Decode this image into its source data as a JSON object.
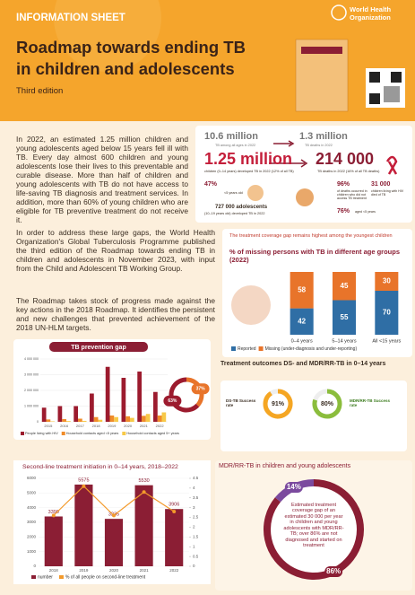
{
  "header": {
    "label": "INFORMATION SHEET",
    "title": [
      "Roadmap towards ending TB",
      "in children and adolescents"
    ],
    "edition": "Third edition",
    "org": [
      "World Health",
      "Organization"
    ]
  },
  "paragraphs": [
    "In 2022, an estimated 1.25 million children and young adolescents aged below 15 years fell ill with TB. Every day almost 600 children and young adolescents lose their lives to this preventable and curable disease. More than half of children and young adolescents with TB do not have access to life-saving TB diagnosis and treatment services. In addition, more than 60% of young children who are eligible for TB preventive treatment do not receive it.",
    "In order to address these large gaps, the World Health Organization's Global Tuberculosis Programme published the third edition of the Roadmap towards ending TB in children and adolescents in November 2023, with input from the Child and Adolescent TB Working Group.",
    "The Roadmap takes stock of progress made against the key actions in the 2018 Roadmap. It identifies the persistent and new challenges that prevented achievement of the 2018 UN-HLM targets."
  ],
  "stats": {
    "all_ages": {
      "value": "10.6 million",
      "label": "TB among all ages in 2022"
    },
    "all_deaths": {
      "value": "1.3 million",
      "label": "TB deaths in 2022"
    },
    "children": {
      "value": "1.25 million",
      "label": "children (0–14 years) developed TB in 2022 (12% of all TB)"
    },
    "child_deaths": {
      "value": "214 000",
      "label": "TB deaths in 2022 (16% of all TB deaths)"
    },
    "under5": {
      "value": "47%",
      "label": "<5 years old"
    },
    "adolescents": {
      "value": "727 000 adolescents",
      "label": "(10–19 years old) developed TB in 2022"
    },
    "untreated": {
      "value": "96%",
      "label": "of deaths occurred in children who did not access TB treatment"
    },
    "deaths_under5": {
      "value": "76%",
      "label": "aged <5 years"
    },
    "hiv": {
      "value": "31 000",
      "label": "children living with HIV died of TB"
    }
  },
  "chart_data": [
    {
      "type": "stacked-bar",
      "title": "The treatment coverage gap remains highest among the youngest children",
      "subtitle": "% of missing persons with TB in different age groups (2022)",
      "categories": [
        "0–4 years",
        "5–14 years",
        "All <15 years"
      ],
      "series": [
        {
          "name": "Reported",
          "color": "#2f6ea5",
          "values": [
            42,
            55,
            70
          ]
        },
        {
          "name": "Missing (under-diagnosis and under-reporting)",
          "color": "#e8742a",
          "values": [
            58,
            45,
            30
          ]
        }
      ]
    },
    {
      "type": "grouped-bar",
      "title": "TB prevention gap",
      "categories": [
        "2015",
        "2016",
        "2017",
        "2018",
        "2019",
        "2020",
        "2021",
        "2022"
      ],
      "ylim": [
        0,
        4000000
      ],
      "yticks": [
        0,
        {
          "value": 1000000,
          "label": "1 000 000"
        },
        {
          "value": 2000000,
          "label": "2 000 000"
        },
        {
          "value": 3000000,
          "label": "3 000 000"
        },
        {
          "value": 4000000,
          "label": "4 000 000"
        }
      ],
      "series": [
        {
          "name": "People living with HIV",
          "color": "#9c1b2e",
          "values": [
            900000,
            1000000,
            1000000,
            1800000,
            3500000,
            2800000,
            3200000,
            1900000
          ]
        },
        {
          "name": "Household contacts aged <5 years",
          "color": "#f08c2a",
          "values": [
            150000,
            170000,
            200000,
            300000,
            400000,
            350000,
            380000,
            400000
          ]
        },
        {
          "name": "Household contacts aged 5+ years",
          "color": "#f7c948",
          "values": [
            30000,
            50000,
            60000,
            130000,
            300000,
            250000,
            500000,
            600000
          ]
        }
      ]
    },
    {
      "type": "pie",
      "values": [
        37,
        63
      ],
      "value_labels": [
        "37%",
        "63%"
      ],
      "colors": [
        "#e8742a",
        "#9c1b2e"
      ]
    },
    {
      "type": "gauge",
      "title": "Treatment outcomes DS- and MDR/RR-TB in 0–14 years",
      "categories": [
        "DS-TB Success rate",
        "MDR/RR-TB Success rate"
      ],
      "values": [
        91,
        80
      ],
      "value_labels": [
        "91%",
        "80%"
      ],
      "ylim": [
        0,
        100
      ],
      "colors": [
        "#f5a623",
        "#8bbd3c"
      ]
    },
    {
      "type": "bar-line",
      "title": "Second-line treatment initiation in 0–14 years, 2018–2022",
      "categories": [
        "2018",
        "2019",
        "2020",
        "2021",
        "2022"
      ],
      "ylim": [
        0,
        6000
      ],
      "yticks": [
        0,
        1000,
        2000,
        3000,
        4000,
        5000,
        6000
      ],
      "y2lim": [
        0,
        4.5
      ],
      "y2ticks": [
        0,
        0.5,
        1,
        1.5,
        2,
        2.5,
        3,
        3.5,
        4,
        4.5
      ],
      "series": [
        {
          "name": "number",
          "color": "#8b1e34",
          "values": [
            3399,
            5575,
            3235,
            5530,
            3906
          ]
        },
        {
          "name": "% of all people on second-line treatment",
          "color": "#f39a2b",
          "axis": "y2",
          "values": [
            2.6,
            4.1,
            2.6,
            3.8,
            2.8
          ]
        }
      ]
    },
    {
      "type": "pie",
      "title": "MDR/RR-TB in children and young adolescents",
      "note": "Estimated treatment coverage gap of an estimated 30 000 per year in children and young adolescents with MDR/RR-TB; over 86% are not diagnosed and started on treatment",
      "values": [
        86,
        14
      ],
      "value_labels": [
        "86%",
        "14%"
      ],
      "colors": [
        "#8b1e34",
        "#7b4a9e"
      ]
    }
  ]
}
